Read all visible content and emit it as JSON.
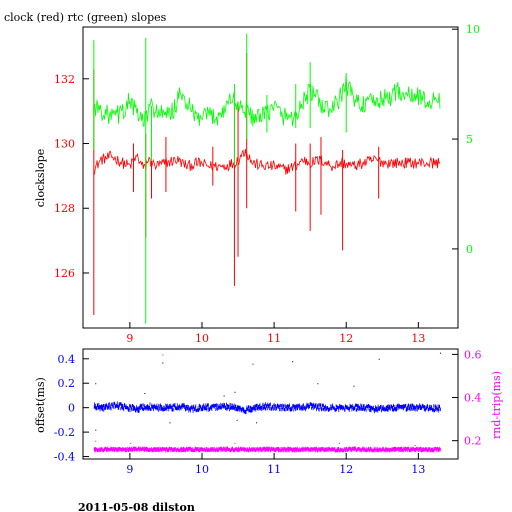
{
  "title": "clock (red) rtc (green) slopes",
  "footer": "2011-05-08 dilston",
  "colors": {
    "red": "#ff0000",
    "green": "#00ff00",
    "blue": "#0000ff",
    "magenta": "#ff00ff",
    "axis": "#000000"
  },
  "chart_data": [
    {
      "type": "line",
      "title": "clock (red) rtc (green) slopes",
      "ylabel": "clockslope",
      "y2label": "",
      "xlim": [
        8.35,
        13.55
      ],
      "ylim": [
        124.3,
        133.6
      ],
      "y2lim": [
        -3.6,
        10.1
      ],
      "xticks": [
        9,
        10,
        11,
        12,
        13
      ],
      "yticks": [
        126,
        128,
        130,
        132
      ],
      "y2ticks": [
        0,
        5,
        10
      ],
      "grid": false,
      "series": [
        {
          "axis": "left",
          "color": "#ff0000",
          "x": [
            8.5,
            8.6,
            8.75,
            8.9,
            9.0,
            9.1,
            9.2,
            9.25,
            9.35,
            9.5,
            9.65,
            9.8,
            9.95,
            10.1,
            10.3,
            10.45,
            10.5,
            10.6,
            10.7,
            10.85,
            11.0,
            11.15,
            11.3,
            11.4,
            11.5,
            11.65,
            11.8,
            11.95,
            12.1,
            12.25,
            12.4,
            12.55,
            12.7,
            12.9,
            13.1,
            13.3
          ],
          "y": [
            129.2,
            129.5,
            129.6,
            129.4,
            129.3,
            129.6,
            129.2,
            129.5,
            129.3,
            129.4,
            129.5,
            129.3,
            129.4,
            129.3,
            129.3,
            129.4,
            129.5,
            129.8,
            129.4,
            129.3,
            129.3,
            129.2,
            129.3,
            129.5,
            129.4,
            129.5,
            129.3,
            129.4,
            129.3,
            129.4,
            129.5,
            129.4,
            129.4,
            129.4,
            129.4,
            129.4
          ],
          "spikes": [
            [
              8.5,
              124.7,
              132.3
            ],
            [
              9.05,
              128.5,
              130.0
            ],
            [
              9.22,
              127.1,
              130.3
            ],
            [
              9.3,
              128.3,
              130.0
            ],
            [
              9.5,
              128.5,
              130.2
            ],
            [
              10.15,
              128.7,
              129.9
            ],
            [
              10.45,
              125.6,
              131.1
            ],
            [
              10.5,
              126.5,
              131.3
            ],
            [
              10.62,
              128.0,
              132.8
            ],
            [
              11.3,
              127.9,
              130.0
            ],
            [
              11.5,
              127.3,
              130.0
            ],
            [
              11.65,
              127.8,
              130.2
            ],
            [
              11.95,
              126.7,
              129.8
            ],
            [
              12.45,
              128.3,
              129.9
            ]
          ]
        },
        {
          "axis": "right",
          "color": "#00ff00",
          "x": [
            8.5,
            8.6,
            8.75,
            8.9,
            9.0,
            9.1,
            9.2,
            9.3,
            9.4,
            9.5,
            9.6,
            9.7,
            9.8,
            9.9,
            10.0,
            10.1,
            10.2,
            10.3,
            10.4,
            10.5,
            10.6,
            10.7,
            10.8,
            10.9,
            11.0,
            11.1,
            11.2,
            11.3,
            11.4,
            11.5,
            11.6,
            11.7,
            11.8,
            11.9,
            12.0,
            12.1,
            12.2,
            12.3,
            12.4,
            12.5,
            12.6,
            12.7,
            12.8,
            12.9,
            13.0,
            13.1,
            13.2,
            13.3
          ],
          "y": [
            6.5,
            6.3,
            6.0,
            6.2,
            6.8,
            6.1,
            5.8,
            6.5,
            6.2,
            6.0,
            6.3,
            7.0,
            6.6,
            6.0,
            5.9,
            6.1,
            6.0,
            6.3,
            6.9,
            6.5,
            6.4,
            6.0,
            5.9,
            6.2,
            6.5,
            6.1,
            6.0,
            6.0,
            6.7,
            7.2,
            6.8,
            6.4,
            6.3,
            6.8,
            7.5,
            6.9,
            6.6,
            6.6,
            6.7,
            6.8,
            6.9,
            7.2,
            7.1,
            6.9,
            7.0,
            6.7,
            6.7,
            6.8
          ],
          "spikes": [
            [
              8.5,
              4.5,
              9.5
            ],
            [
              9.22,
              -3.4,
              9.6
            ],
            [
              9.3,
              4.0,
              6.5
            ],
            [
              10.45,
              3.8,
              7.5
            ],
            [
              10.62,
              5.0,
              9.8
            ],
            [
              10.9,
              5.3,
              7.0
            ],
            [
              11.3,
              5.5,
              7.5
            ],
            [
              11.5,
              5.5,
              8.5
            ],
            [
              12.0,
              5.3,
              8.0
            ]
          ]
        }
      ]
    },
    {
      "type": "scatter",
      "ylabel": "offset(ms)",
      "y2label": "rnd-trip(ms)",
      "xlim": [
        8.35,
        13.55
      ],
      "ylim": [
        -0.42,
        0.48
      ],
      "y2lim": [
        0.115,
        0.625
      ],
      "xticks": [
        9,
        10,
        11,
        12,
        13
      ],
      "yticks": [
        -0.4,
        -0.2,
        0,
        0.2,
        0.4
      ],
      "y2ticks": [
        0.2,
        0.4,
        0.6
      ],
      "grid": false,
      "series": [
        {
          "axis": "left",
          "color": "#0000ff",
          "x": [
            8.5,
            8.65,
            8.8,
            8.95,
            9.1,
            9.25,
            9.4,
            9.55,
            9.7,
            9.85,
            10.0,
            10.15,
            10.3,
            10.45,
            10.6,
            10.75,
            10.9,
            11.05,
            11.2,
            11.35,
            11.5,
            11.65,
            11.8,
            11.95,
            12.1,
            12.25,
            12.4,
            12.55,
            12.7,
            12.85,
            13.0,
            13.15,
            13.3
          ],
          "y": [
            0.01,
            0.0,
            0.02,
            0.0,
            -0.01,
            0.01,
            0.0,
            0.0,
            0.01,
            -0.01,
            0.0,
            0.0,
            0.01,
            0.0,
            -0.02,
            0.0,
            0.01,
            0.0,
            0.0,
            0.0,
            0.01,
            0.0,
            0.0,
            0.0,
            0.0,
            0.0,
            -0.01,
            0.0,
            0.0,
            0.0,
            0.0,
            0.0,
            -0.01
          ],
          "outliers": [
            [
              8.52,
              0.2
            ],
            [
              8.52,
              -0.18
            ],
            [
              9.2,
              0.12
            ],
            [
              9.45,
              0.37
            ],
            [
              9.55,
              -0.12
            ],
            [
              10.3,
              0.1
            ],
            [
              10.45,
              0.13
            ],
            [
              10.48,
              -0.1
            ],
            [
              10.7,
              0.36
            ],
            [
              10.75,
              -0.12
            ],
            [
              11.25,
              0.38
            ],
            [
              11.6,
              0.2
            ],
            [
              12.1,
              0.18
            ],
            [
              12.45,
              0.4
            ],
            [
              13.3,
              0.45
            ]
          ]
        },
        {
          "axis": "right",
          "color": "#ff00ff",
          "x": [
            8.5,
            8.7,
            8.9,
            9.1,
            9.3,
            9.5,
            9.7,
            9.9,
            10.1,
            10.3,
            10.5,
            10.7,
            10.9,
            11.1,
            11.3,
            11.5,
            11.7,
            11.9,
            12.1,
            12.3,
            12.5,
            12.7,
            12.9,
            13.1,
            13.3
          ],
          "y": [
            0.158,
            0.16,
            0.158,
            0.161,
            0.159,
            0.158,
            0.16,
            0.159,
            0.158,
            0.16,
            0.159,
            0.158,
            0.16,
            0.159,
            0.158,
            0.16,
            0.159,
            0.158,
            0.16,
            0.159,
            0.158,
            0.16,
            0.159,
            0.158,
            0.16
          ],
          "outliers": [
            [
              8.52,
              0.2
            ],
            [
              9.0,
              0.19
            ],
            [
              9.45,
              0.6
            ],
            [
              10.45,
              0.19
            ],
            [
              11.9,
              0.19
            ],
            [
              12.95,
              0.18
            ]
          ]
        }
      ]
    }
  ]
}
